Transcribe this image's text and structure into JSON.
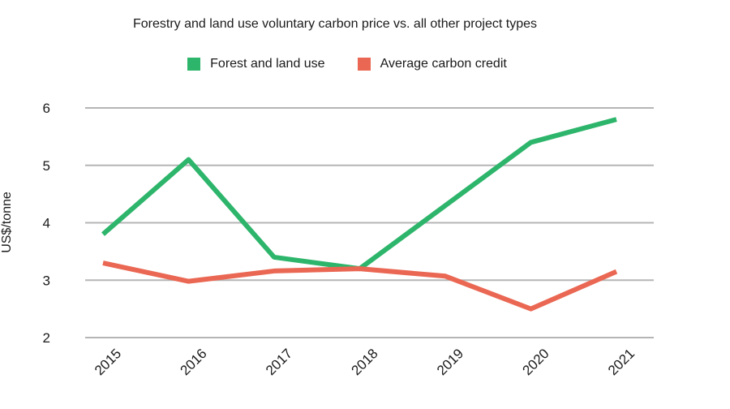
{
  "chart_data": {
    "type": "line",
    "title": "Forestry and land use voluntary carbon price vs. all other project types",
    "xlabel": "",
    "ylabel": "US$/tonne",
    "categories": [
      "2015",
      "2016",
      "2017",
      "2018",
      "2019",
      "2020",
      "2021"
    ],
    "ylim": [
      2,
      6
    ],
    "yticks": [
      2,
      3,
      4,
      5,
      6
    ],
    "grid": true,
    "legend_position": "top-center",
    "series": [
      {
        "name": "Forest and land use",
        "color": "#2db56b",
        "values": [
          3.8,
          5.1,
          3.4,
          3.2,
          4.3,
          5.4,
          5.8
        ]
      },
      {
        "name": "Average carbon credit",
        "color": "#ea6753",
        "values": [
          3.3,
          2.98,
          3.16,
          3.2,
          3.07,
          2.5,
          3.15
        ]
      }
    ]
  }
}
